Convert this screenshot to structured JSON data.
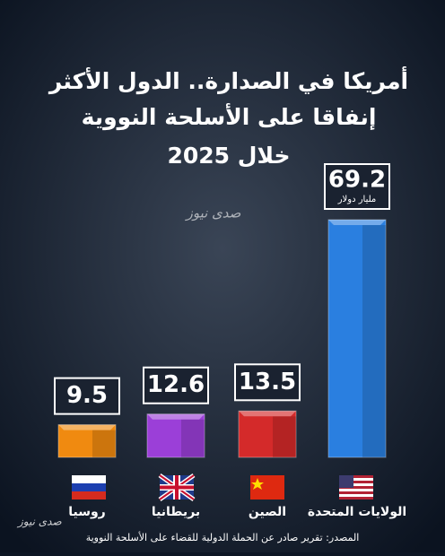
{
  "chart_data": {
    "type": "bar",
    "title_lines": [
      "أمريكا في الصدارة.. الدول الأكثر",
      "إنفاقا على الأسلحة النووية",
      "خلال 2025"
    ],
    "categories": [
      "روسيا",
      "بريطانيا",
      "الصين",
      "الولايات المتحدة"
    ],
    "values": [
      9.5,
      12.6,
      13.5,
      69.2
    ],
    "colors": [
      "#f08a10",
      "#9b3fd8",
      "#d42a2a",
      "#2a7fe0"
    ],
    "unit_label": "مليار دولار",
    "logo": "صدى نيوز",
    "source": "المصدر: تقرير صادر عن الحملة الدولية للقضاء على الأسلحة النووية"
  }
}
